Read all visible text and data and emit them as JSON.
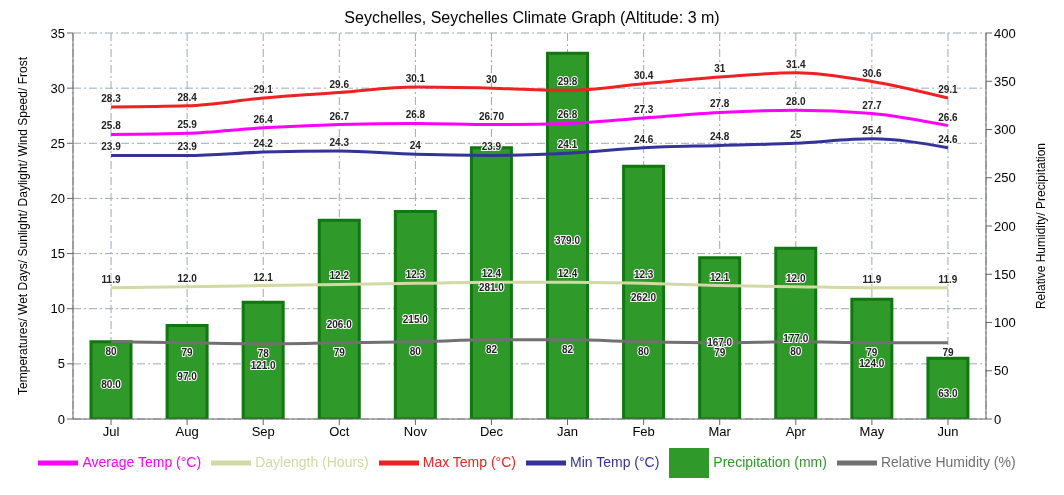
{
  "chart_data": {
    "type": "line",
    "title": "Seychelles, Seychelles Climate Graph (Altitude: 3 m)",
    "ylabel": "Temperatures/ Wet Days/ Sunlight/ Daylight/ Wind Speed/ Frost",
    "y2label": "Relative Humidity/ Precipitation",
    "categories": [
      "Jul",
      "Aug",
      "Sep",
      "Oct",
      "Nov",
      "Dec",
      "Jan",
      "Feb",
      "Mar",
      "Apr",
      "May",
      "Jun"
    ],
    "series": [
      {
        "name": "Precipitation (mm)",
        "type": "bar",
        "axis": "y2",
        "color": "#2f9a2a",
        "values": [
          80,
          97,
          121,
          206,
          215,
          281,
          379,
          262,
          167,
          177,
          124,
          63
        ],
        "value_labels": [
          "80.0",
          "97.0",
          "121.0",
          "206.0",
          "215.0",
          "281.0",
          "379.0",
          "262.0",
          "167.0",
          "177.0",
          "124.0",
          "63.0"
        ]
      },
      {
        "name": "Min Temp (°C)",
        "color": "#333399",
        "values": [
          23.9,
          23.9,
          24.2,
          24.3,
          24,
          23.9,
          24.1,
          24.6,
          24.8,
          25,
          25.4,
          24.6
        ],
        "value_labels": [
          "23.9",
          "23.9",
          "24.2",
          "24.3",
          "24",
          "23.9",
          "24.1",
          "24.6",
          "24.8",
          "25",
          "25.4",
          "24.6"
        ]
      },
      {
        "name": "Max Temp (°C)",
        "color": "#ee2222",
        "values": [
          28.3,
          28.4,
          29.1,
          29.6,
          30.1,
          30,
          29.8,
          30.4,
          31,
          31.4,
          30.6,
          29.1
        ],
        "value_labels": [
          "28.3",
          "28.4",
          "29.1",
          "29.6",
          "30.1",
          "30",
          "29.8",
          "30.4",
          "31",
          "31.4",
          "30.6",
          "29.1"
        ]
      },
      {
        "name": "Average Temp (°C)",
        "color": "#ff00ff",
        "values": [
          25.8,
          25.9,
          26.4,
          26.7,
          26.8,
          26.7,
          26.8,
          27.3,
          27.8,
          28.0,
          27.7,
          26.6
        ],
        "value_labels": [
          "25.8",
          "25.9",
          "26.4",
          "26.7",
          "26.8",
          "26.70",
          "26.8",
          "27.3",
          "27.8",
          "28.0",
          "27.7",
          "26.6"
        ]
      },
      {
        "name": "Daylength (Hours)",
        "color": "#d4d8a4",
        "values": [
          11.9,
          12.0,
          12.1,
          12.2,
          12.3,
          12.4,
          12.4,
          12.3,
          12.1,
          12.0,
          11.9,
          11.9
        ],
        "value_labels": [
          "11.9",
          "12.0",
          "12.1",
          "12.2",
          "12.3",
          "12.4",
          "12.4",
          "12.3",
          "12.1",
          "12.0",
          "11.9",
          "11.9"
        ]
      },
      {
        "name": "Relative Humidity (%)",
        "axis": "y2",
        "color": "#707070",
        "values": [
          80,
          79,
          78,
          79,
          80,
          82,
          82,
          80,
          79,
          80,
          79,
          79
        ],
        "value_labels": [
          "80",
          "79",
          "78",
          "79",
          "80",
          "82",
          "82",
          "80",
          "79",
          "80",
          "79",
          "79"
        ]
      }
    ],
    "ylim": [
      0,
      35
    ],
    "yticks": [
      0,
      5,
      10,
      15,
      20,
      25,
      30,
      35
    ],
    "y2lim": [
      0,
      400
    ],
    "y2ticks": [
      0,
      50,
      100,
      150,
      200,
      250,
      300,
      350,
      400
    ],
    "grid": true,
    "legend": "bottom",
    "marker": "none"
  }
}
